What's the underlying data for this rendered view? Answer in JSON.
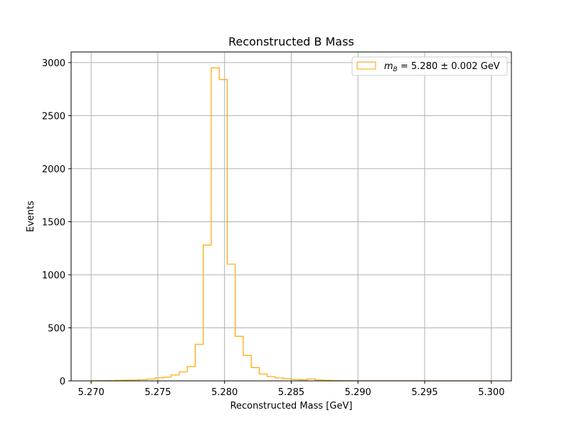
{
  "chart_data": {
    "type": "histogram",
    "title": "Reconstructed B Mass",
    "xlabel": "Reconstructed Mass [GeV]",
    "ylabel": "Events",
    "xlim": [
      5.2685,
      5.3015
    ],
    "ylim": [
      0,
      3100
    ],
    "grid": true,
    "legend_position": "top-right",
    "color": "#FFA500",
    "x_ticks": [
      "5.270",
      "5.275",
      "5.280",
      "5.285",
      "5.290",
      "5.295",
      "5.300"
    ],
    "y_ticks": [
      "0",
      "500",
      "1000",
      "1500",
      "2000",
      "2500",
      "3000"
    ],
    "legend": {
      "math_prefix": "m",
      "math_subscript": "B",
      "text": " = 5.280 ± 0.002 GeV"
    },
    "bin_start": 5.27,
    "bin_width": 0.0006,
    "counts": [
      2,
      2,
      3,
      5,
      6,
      8,
      12,
      18,
      28,
      35,
      55,
      85,
      135,
      345,
      1280,
      2950,
      2840,
      1100,
      420,
      240,
      125,
      65,
      40,
      28,
      20,
      14,
      10,
      18,
      8,
      5,
      3,
      2,
      2,
      1,
      1,
      1,
      1,
      1,
      1,
      1,
      1,
      1,
      0,
      0,
      0,
      0,
      0,
      0,
      0,
      0
    ]
  }
}
